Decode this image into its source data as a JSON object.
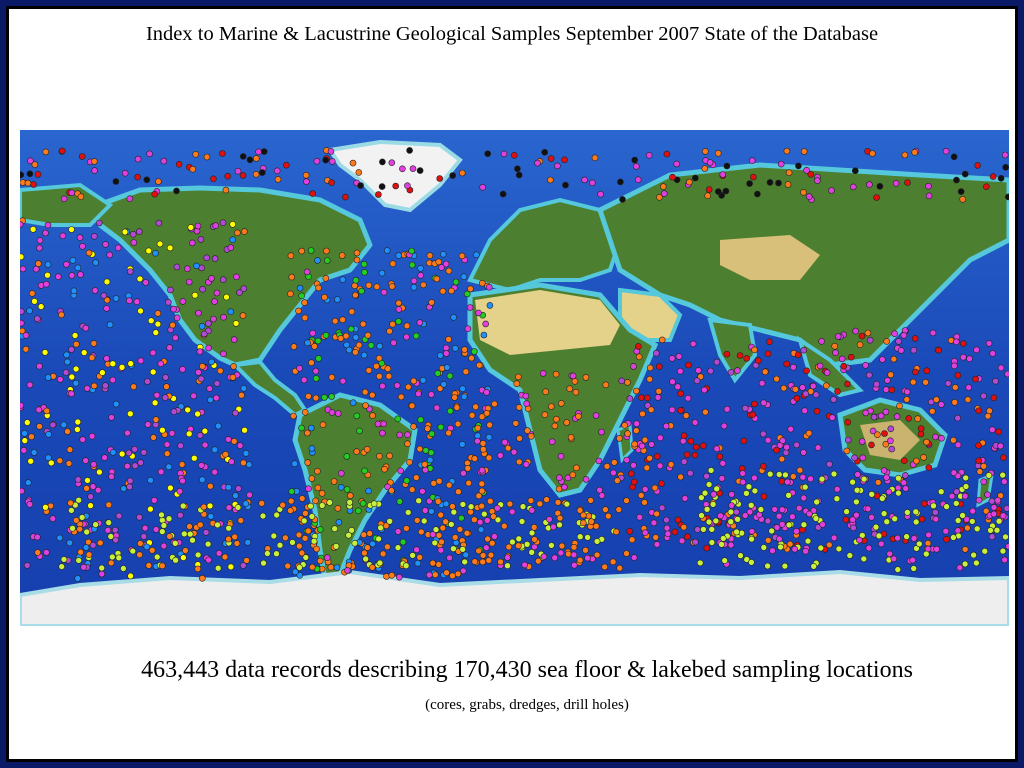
{
  "slide": {
    "title": "Index to Marine & Lacustrine Geological Samples September 2007 State of the Database",
    "caption": "463,443 data records describing 170,430 sea floor & lakebed sampling locations",
    "subcaption": "(cores, grabs, dredges, drill holes)"
  },
  "map": {
    "projection": "equirectangular world map",
    "sample_colors": [
      "#ff7a1a",
      "#e040e0",
      "#b24ad6",
      "#c7ef3c",
      "#1e90ff",
      "#22cc22",
      "#ffff00",
      "#e01010",
      "#111111",
      "#ffffff"
    ],
    "ocean_colors": {
      "deep": "#123aa8",
      "mid": "#2a66cf",
      "shelf": "#49c6dc"
    },
    "land_colors": {
      "vegetation": "#3f7a2a",
      "desert": "#e4d18a",
      "ice": "#f2f2f2"
    }
  }
}
